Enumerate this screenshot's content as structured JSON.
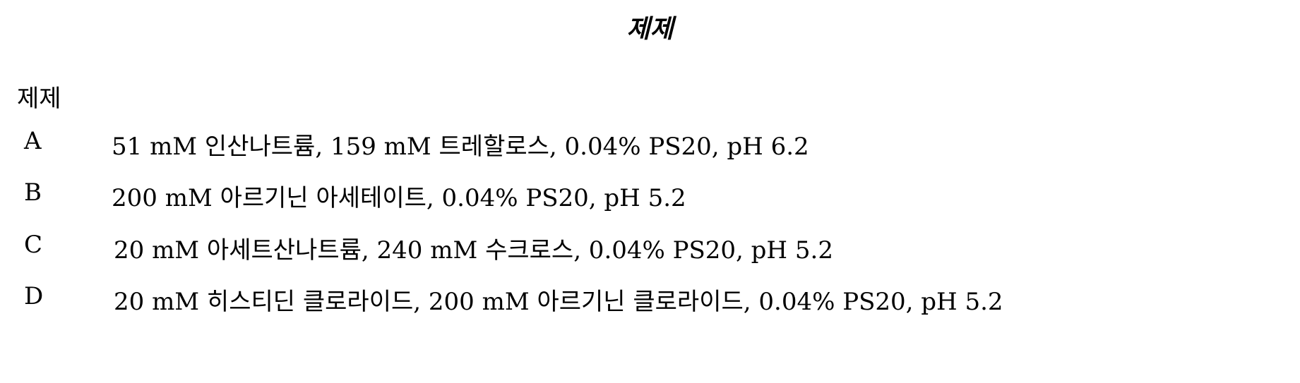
{
  "title": "제제",
  "column_header": "제제",
  "rows": [
    {
      "code": "A",
      "description": "51 mM 인산나트륨, 159 mM 트레할로스, 0.04% PS20, pH 6.2"
    },
    {
      "code": "B",
      "description": "200 mM 아르기닌 아세테이트, 0.04% PS20, pH 5.2"
    },
    {
      "code": "C",
      "description": "20 mM 아세트산나트륨, 240 mM 수크로스, 0.04% PS20, pH 5.2"
    },
    {
      "code": "D",
      "description": "20 mM 히스티딘 클로라이드, 200 mM 아르기닌 클로라이드, 0.04% PS20, pH 5.2"
    }
  ]
}
